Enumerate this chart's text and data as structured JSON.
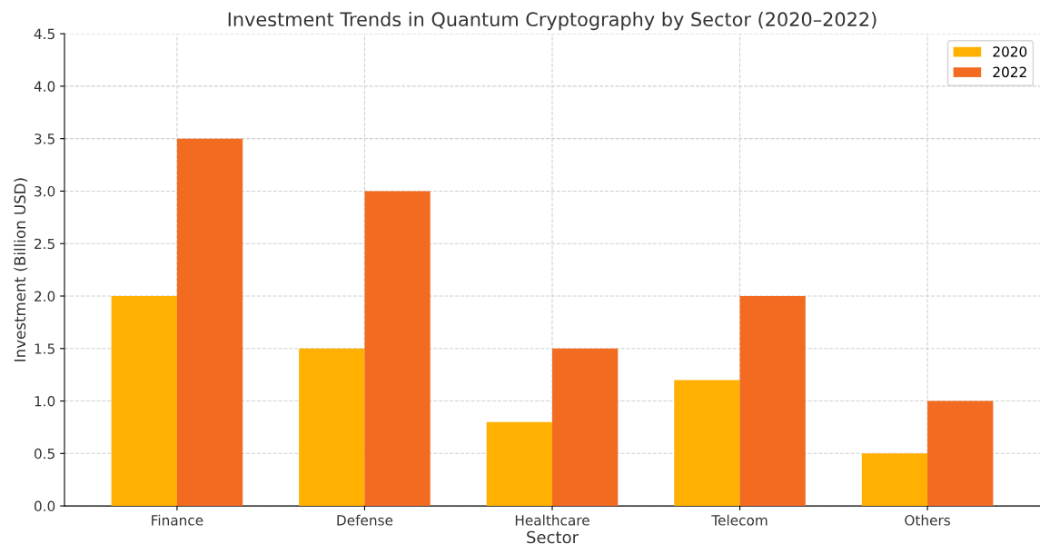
{
  "chart_data": {
    "type": "bar",
    "title": "Investment Trends in Quantum Cryptography by Sector (2020–2022)",
    "xlabel": "Sector",
    "ylabel": "Investment (Billion USD)",
    "categories": [
      "Finance",
      "Defense",
      "Healthcare",
      "Telecom",
      "Others"
    ],
    "series": [
      {
        "name": "2020",
        "color": "#ffb000",
        "values": [
          2.0,
          1.5,
          0.8,
          1.2,
          0.5
        ]
      },
      {
        "name": "2022",
        "color": "#f26b21",
        "values": [
          3.5,
          3.0,
          1.5,
          2.0,
          1.0
        ]
      }
    ],
    "ylim": [
      0,
      4.5
    ],
    "yticks": [
      {
        "value": 0,
        "label": "0.0"
      },
      {
        "value": 0.5,
        "label": "0.5"
      },
      {
        "value": 1,
        "label": "1.0"
      },
      {
        "value": 1.5,
        "label": "1.5"
      },
      {
        "value": 2,
        "label": "2.0"
      },
      {
        "value": 2.5,
        "label": "2.5"
      },
      {
        "value": 3,
        "label": "3.0"
      },
      {
        "value": 3.5,
        "label": "3.5"
      },
      {
        "value": 4,
        "label": "4.0"
      },
      {
        "value": 4.5,
        "label": "4.5"
      }
    ],
    "grid": true,
    "legend": "top right"
  }
}
